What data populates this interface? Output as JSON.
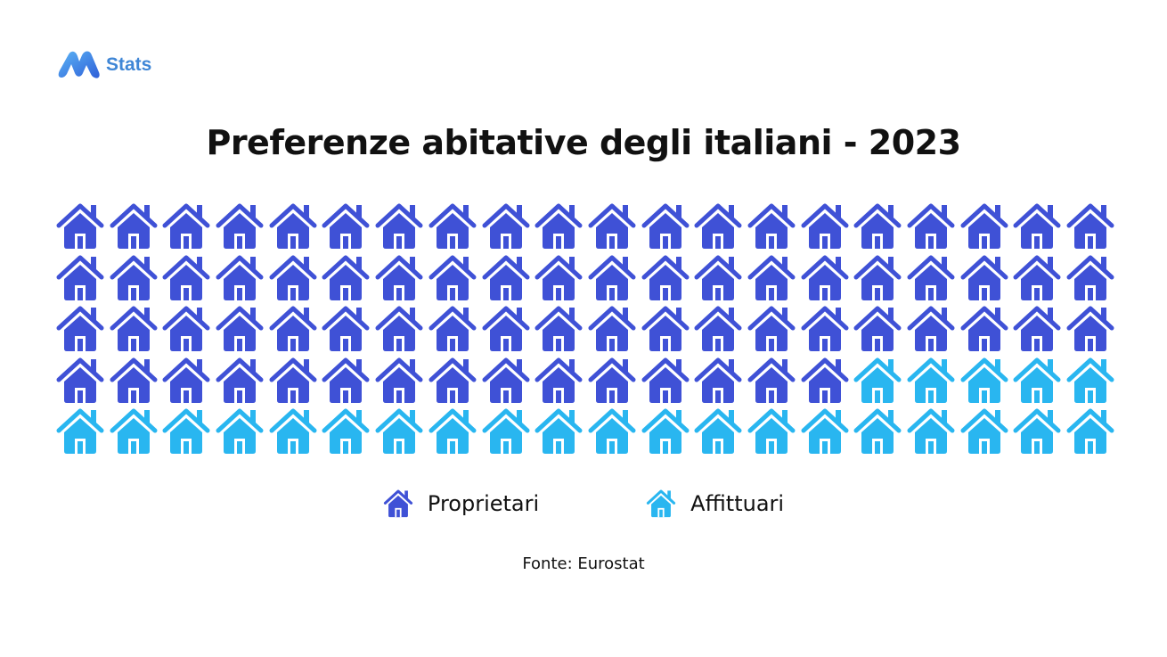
{
  "logo": {
    "text": "Stats",
    "icon": "m-logo-icon"
  },
  "title": "Preferenze abitative degli italiani - 2023",
  "legend": [
    {
      "label": "Proprietari",
      "color": "#3f51d6",
      "icon": "house-icon"
    },
    {
      "label": "Affittuari",
      "color": "#29b6f0",
      "icon": "house-icon"
    }
  ],
  "source": "Fonte: Eurostat",
  "colors": {
    "owners": "#3f51d6",
    "renters": "#29b6f0",
    "logo": "#3f86d6"
  },
  "chart_data": {
    "type": "waffle",
    "title": "Preferenze abitative degli italiani - 2023",
    "unit": "houses (each = 1%)",
    "grid": {
      "rows": 5,
      "columns": 20,
      "total": 100
    },
    "categories": [
      "Proprietari",
      "Affittuari"
    ],
    "values": [
      75,
      25
    ],
    "colors": [
      "#3f51d6",
      "#29b6f0"
    ],
    "legend_position": "bottom",
    "source": "Fonte: Eurostat"
  }
}
